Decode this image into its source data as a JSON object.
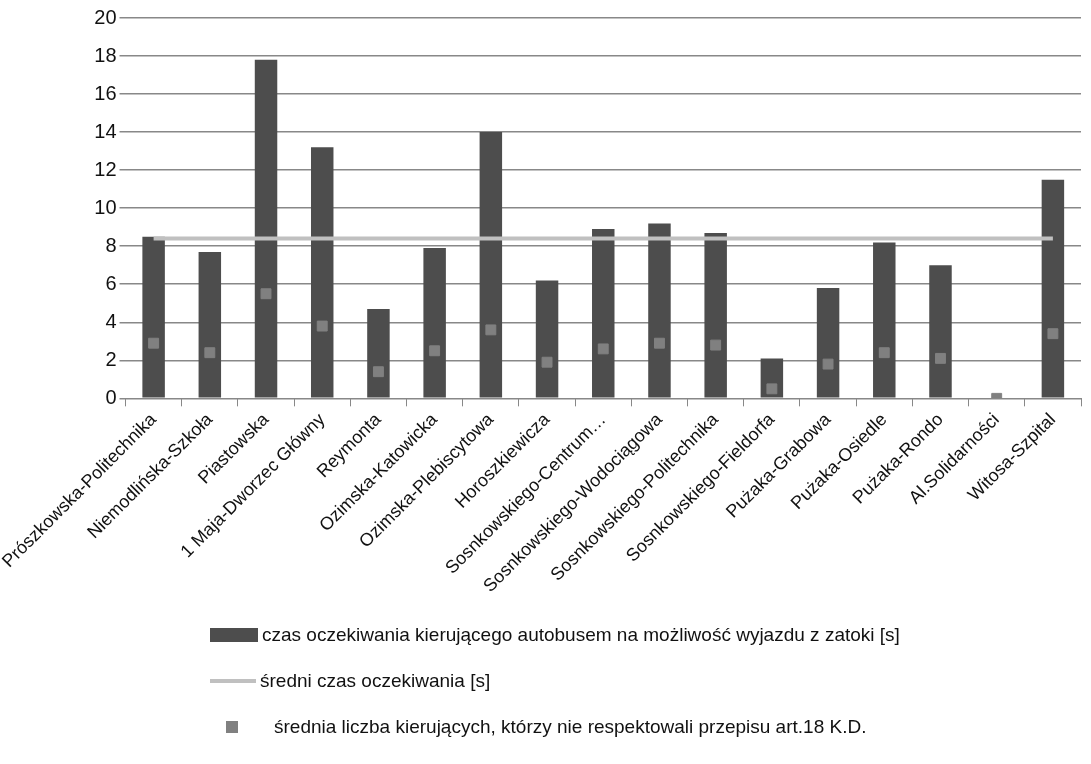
{
  "chart_data": {
    "type": "bar",
    "categories": [
      "Prószkowska-Politechnika",
      "Niemodlińska-Szkoła",
      "Piastowska",
      "1 Maja-Dworzec Główny",
      "Reymonta",
      "Ozimska-Katowicka",
      "Ozimska-Plebiscytowa",
      "Horoszkiewicza",
      "Sosnkowskiego-Centrum…",
      "Sosnkowskiego-Wodociągowa",
      "Sosnkowskiego-Politechnika",
      "Sosnkowskiego-Fieldorfa",
      "Pużaka-Grabowa",
      "Pużaka-Osiedle",
      "Pużaka-Rondo",
      "Al.Solidarności",
      "Witosa-Szpital"
    ],
    "series": [
      {
        "name": "czas oczekiwania kierującego autobusem na możliwość wyjazdu z zatoki [s]",
        "color": "#4d4d4d",
        "values": [
          8.5,
          7.7,
          17.8,
          13.2,
          4.7,
          7.9,
          14.0,
          6.2,
          8.9,
          9.2,
          8.7,
          2.1,
          5.8,
          8.2,
          7.0,
          0,
          11.5
        ]
      },
      {
        "name": "średni czas oczekiwania [s]",
        "type": "line",
        "color": "#c0c0c0",
        "marker": "none",
        "values": [
          8.4,
          8.4,
          8.4,
          8.4,
          8.4,
          8.4,
          8.4,
          8.4,
          8.4,
          8.4,
          8.4,
          8.4,
          8.4,
          8.4,
          8.4,
          8.4,
          8.4
        ]
      },
      {
        "name": "średnia liczba kierujących, którzy nie respektowali przepisu art.18 K.D.",
        "type": "scatter",
        "color": "#808080",
        "marker": "square",
        "values": [
          2.9,
          2.4,
          5.5,
          3.8,
          1.4,
          2.5,
          3.6,
          1.9,
          2.6,
          2.9,
          2.8,
          0.5,
          1.8,
          2.4,
          2.1,
          0,
          3.4
        ]
      }
    ],
    "ylim": [
      0,
      20
    ],
    "yticks": [
      0,
      2,
      4,
      6,
      8,
      10,
      12,
      14,
      16,
      18,
      20
    ],
    "grid": "y",
    "legend": "bottom"
  }
}
